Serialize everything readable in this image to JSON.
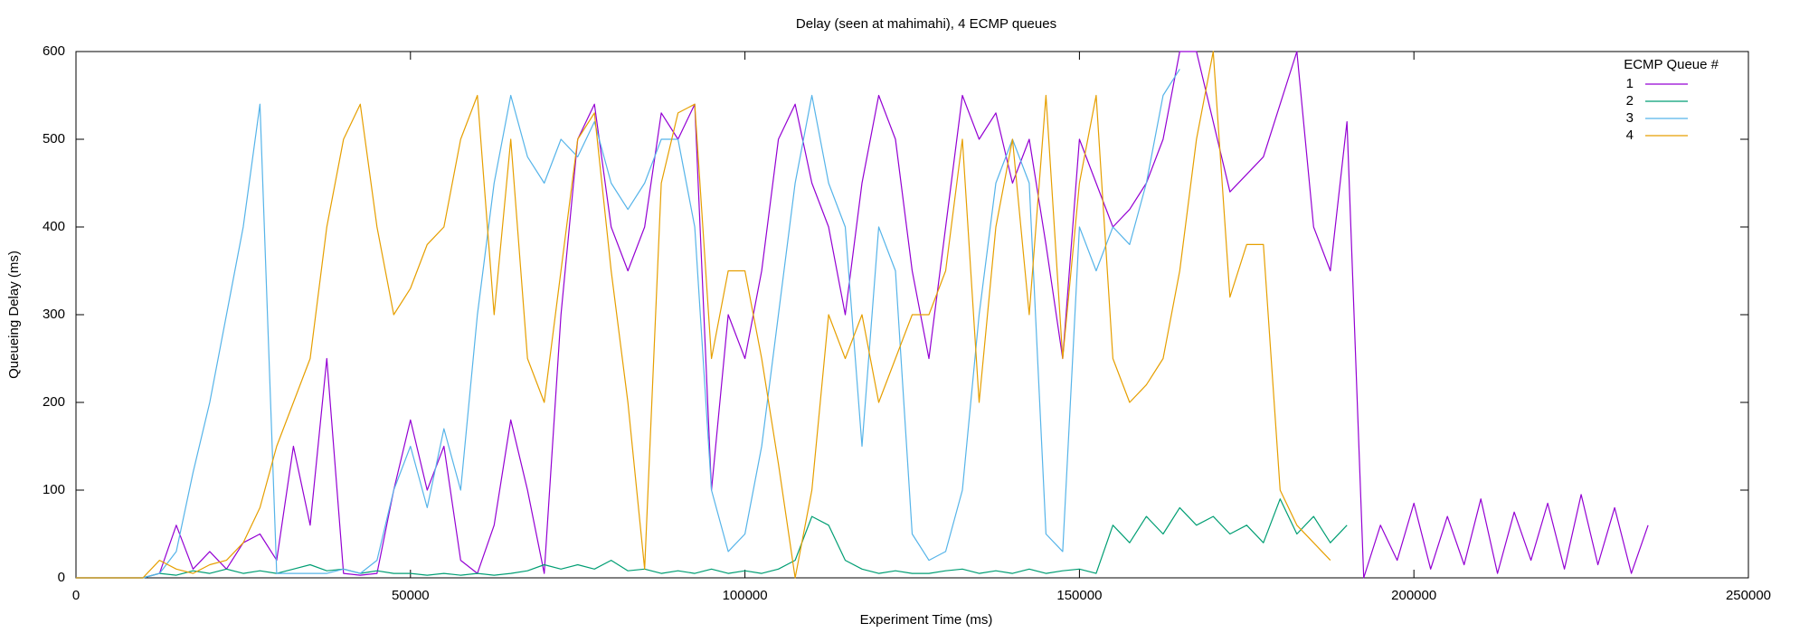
{
  "chart_data": {
    "type": "line",
    "title": "Delay (seen at mahimahi), 4 ECMP queues",
    "x_label": "Experiment Time (ms)",
    "y_label": "Queueing Delay (ms)",
    "legend_title": "ECMP Queue #",
    "legend_position": "top-right",
    "grid": false,
    "xlim": [
      0,
      250000
    ],
    "xticks": [
      0,
      50000,
      100000,
      150000,
      200000,
      250000
    ],
    "ylim": [
      0,
      600
    ],
    "yticks": [
      0,
      100,
      200,
      300,
      400,
      500,
      600
    ],
    "x": [
      0,
      2500,
      5000,
      7500,
      10000,
      12500,
      15000,
      17500,
      20000,
      22500,
      25000,
      27500,
      30000,
      32500,
      35000,
      37500,
      40000,
      42500,
      45000,
      47500,
      50000,
      52500,
      55000,
      57500,
      60000,
      62500,
      65000,
      67500,
      70000,
      72500,
      75000,
      77500,
      80000,
      82500,
      85000,
      87500,
      90000,
      92500,
      95000,
      97500,
      100000,
      102500,
      105000,
      107500,
      110000,
      112500,
      115000,
      117500,
      120000,
      122500,
      125000,
      127500,
      130000,
      132500,
      135000,
      137500,
      140000,
      142500,
      145000,
      147500,
      150000,
      152500,
      155000,
      157500,
      160000,
      162500,
      165000,
      167500,
      170000,
      172500,
      175000,
      177500,
      180000,
      182500,
      185000,
      187500,
      190000,
      192500,
      195000,
      197500,
      200000,
      202500,
      205000,
      207500,
      210000,
      212500,
      215000,
      217500,
      220000,
      222500,
      225000,
      227500,
      230000,
      232500,
      235000,
      237500
    ],
    "series": [
      {
        "name": "1",
        "color": "#9400d3",
        "values": [
          0,
          0,
          0,
          0,
          0,
          5,
          60,
          10,
          30,
          10,
          40,
          50,
          20,
          150,
          60,
          250,
          5,
          3,
          5,
          100,
          180,
          100,
          150,
          20,
          5,
          60,
          180,
          100,
          5,
          300,
          500,
          540,
          400,
          350,
          400,
          530,
          500,
          540,
          100,
          300,
          250,
          350,
          500,
          540,
          450,
          400,
          300,
          450,
          550,
          500,
          350,
          250,
          400,
          550,
          500,
          530,
          450,
          500,
          380,
          250,
          500,
          450,
          400,
          420,
          450,
          500,
          600,
          600,
          520,
          440,
          460,
          480,
          540,
          600,
          400,
          350,
          520,
          0,
          60,
          20,
          85,
          10,
          70,
          15,
          90,
          5,
          75,
          20,
          85,
          10,
          95,
          15,
          80,
          5,
          60,
          null
        ]
      },
      {
        "name": "2",
        "color": "#009e73",
        "values": [
          0,
          0,
          0,
          0,
          0,
          5,
          3,
          8,
          5,
          10,
          5,
          8,
          5,
          10,
          15,
          8,
          10,
          5,
          8,
          5,
          5,
          3,
          5,
          3,
          5,
          3,
          5,
          8,
          15,
          10,
          15,
          10,
          20,
          8,
          10,
          5,
          8,
          5,
          10,
          5,
          8,
          5,
          10,
          20,
          70,
          60,
          20,
          10,
          5,
          8,
          5,
          5,
          8,
          10,
          5,
          8,
          5,
          10,
          5,
          8,
          10,
          5,
          60,
          40,
          70,
          50,
          80,
          60,
          70,
          50,
          60,
          40,
          90,
          50,
          70,
          40,
          60,
          null,
          null,
          null,
          null,
          null,
          null,
          null,
          null,
          null,
          null,
          null,
          null,
          null,
          null,
          null,
          null,
          null,
          null,
          null
        ]
      },
      {
        "name": "3",
        "color": "#56b4e9",
        "values": [
          0,
          0,
          0,
          0,
          0,
          5,
          30,
          120,
          200,
          300,
          400,
          540,
          5,
          5,
          5,
          5,
          10,
          5,
          20,
          100,
          150,
          80,
          170,
          100,
          300,
          450,
          550,
          480,
          450,
          500,
          480,
          520,
          450,
          420,
          450,
          500,
          500,
          400,
          100,
          30,
          50,
          150,
          300,
          450,
          550,
          450,
          400,
          150,
          400,
          350,
          50,
          20,
          30,
          100,
          300,
          450,
          500,
          450,
          50,
          30,
          400,
          350,
          400,
          380,
          450,
          550,
          580,
          null,
          null,
          null,
          null,
          null,
          null,
          null,
          null,
          null,
          null,
          null,
          null,
          null,
          null,
          null,
          null,
          null,
          null,
          null,
          null,
          null,
          null,
          null,
          null,
          null,
          null,
          null,
          null,
          null
        ]
      },
      {
        "name": "4",
        "color": "#e69f00",
        "values": [
          0,
          0,
          0,
          0,
          0,
          20,
          10,
          5,
          15,
          20,
          40,
          80,
          150,
          200,
          250,
          400,
          500,
          540,
          400,
          300,
          330,
          380,
          400,
          500,
          550,
          300,
          500,
          250,
          200,
          350,
          500,
          530,
          350,
          200,
          10,
          450,
          530,
          540,
          250,
          350,
          350,
          250,
          130,
          0,
          100,
          300,
          250,
          300,
          200,
          250,
          300,
          300,
          350,
          500,
          200,
          400,
          500,
          300,
          550,
          250,
          450,
          550,
          250,
          200,
          220,
          250,
          350,
          500,
          600,
          320,
          380,
          380,
          100,
          60,
          40,
          20,
          null,
          null,
          null,
          null,
          null,
          null,
          null,
          null,
          null,
          null,
          null,
          null,
          null,
          null,
          null,
          null,
          null,
          null,
          null,
          null
        ]
      }
    ]
  }
}
